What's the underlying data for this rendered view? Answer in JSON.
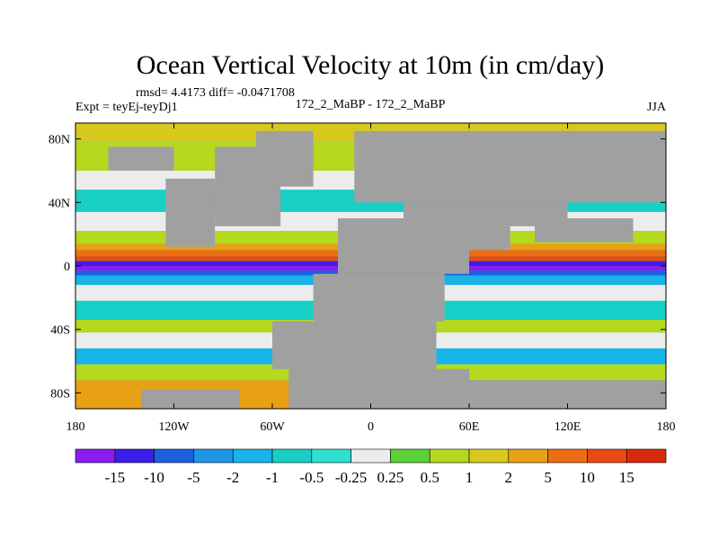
{
  "chart_data": {
    "type": "heatmap",
    "title": "Ocean Vertical Velocity at 10m (in cm/day)",
    "stats_line": "rmsd= 4.4173 diff= -0.0471708",
    "left_label": "Expt = teyEj-teyDj1",
    "center_label": "172_2_MaBP - 172_2_MaBP",
    "right_label": "JJA",
    "x_ticks": [
      "180",
      "120W",
      "60W",
      "0",
      "60E",
      "120E",
      "180"
    ],
    "x_tick_values": [
      -180,
      -120,
      -60,
      0,
      60,
      120,
      180
    ],
    "y_ticks": [
      "80N",
      "40N",
      "0",
      "40S",
      "80S"
    ],
    "y_tick_values": [
      80,
      40,
      0,
      -40,
      -80
    ],
    "xlim": [
      -180,
      180
    ],
    "ylim": [
      -90,
      90
    ],
    "colorbar": {
      "labels": [
        "-15",
        "-10",
        "-5",
        "-2",
        "-1",
        "-0.5",
        "-0.25",
        "0.25",
        "0.5",
        "1",
        "2",
        "5",
        "10",
        "15"
      ],
      "colors": [
        "#8a1df0",
        "#3b1ee8",
        "#1e5ee0",
        "#1e96e6",
        "#18b4e8",
        "#18cfc6",
        "#2ee0d0",
        "#ececec",
        "#5ad23a",
        "#b4d91e",
        "#d8c81e",
        "#e8a014",
        "#ec6e14",
        "#e84a14",
        "#d82a0e"
      ]
    },
    "land_color": "#a0a0a0",
    "land_blocks": [
      {
        "lon": [
          -125,
          -95
        ],
        "lat": [
          12,
          55
        ]
      },
      {
        "lon": [
          -95,
          -55
        ],
        "lat": [
          25,
          75
        ]
      },
      {
        "lon": [
          -70,
          -35
        ],
        "lat": [
          50,
          85
        ]
      },
      {
        "lon": [
          -160,
          -120
        ],
        "lat": [
          60,
          75
        ]
      },
      {
        "lon": [
          -50,
          60
        ],
        "lat": [
          -90,
          -65
        ]
      },
      {
        "lon": [
          60,
          180
        ],
        "lat": [
          -90,
          -72
        ]
      },
      {
        "lon": [
          -140,
          -80
        ],
        "lat": [
          -90,
          -78
        ]
      },
      {
        "lon": [
          -60,
          40
        ],
        "lat": [
          -65,
          -35
        ]
      },
      {
        "lon": [
          -35,
          45
        ],
        "lat": [
          -35,
          -5
        ]
      },
      {
        "lon": [
          -20,
          60
        ],
        "lat": [
          -5,
          30
        ]
      },
      {
        "lon": [
          -10,
          180
        ],
        "lat": [
          40,
          85
        ]
      },
      {
        "lon": [
          20,
          120
        ],
        "lat": [
          25,
          40
        ]
      },
      {
        "lon": [
          100,
          160
        ],
        "lat": [
          15,
          30
        ]
      },
      {
        "lon": [
          60,
          85
        ],
        "lat": [
          10,
          25
        ]
      }
    ]
  }
}
